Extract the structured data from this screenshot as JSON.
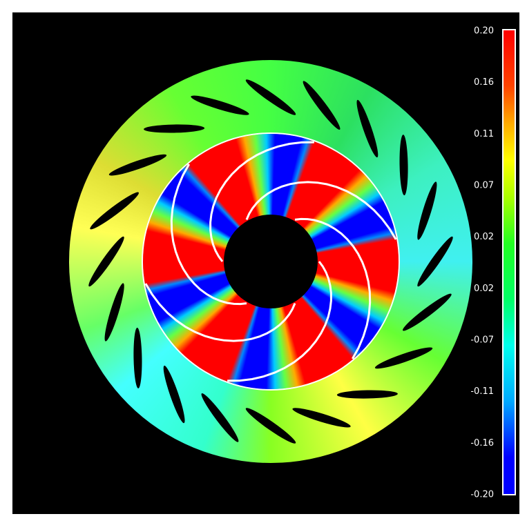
{
  "colorbar": {
    "labels": [
      "0.20",
      "0.16",
      "0.11",
      "0.07",
      "0.02",
      "0.02",
      "-0.07",
      "-0.11",
      "-0.16",
      "-0.20"
    ]
  }
}
